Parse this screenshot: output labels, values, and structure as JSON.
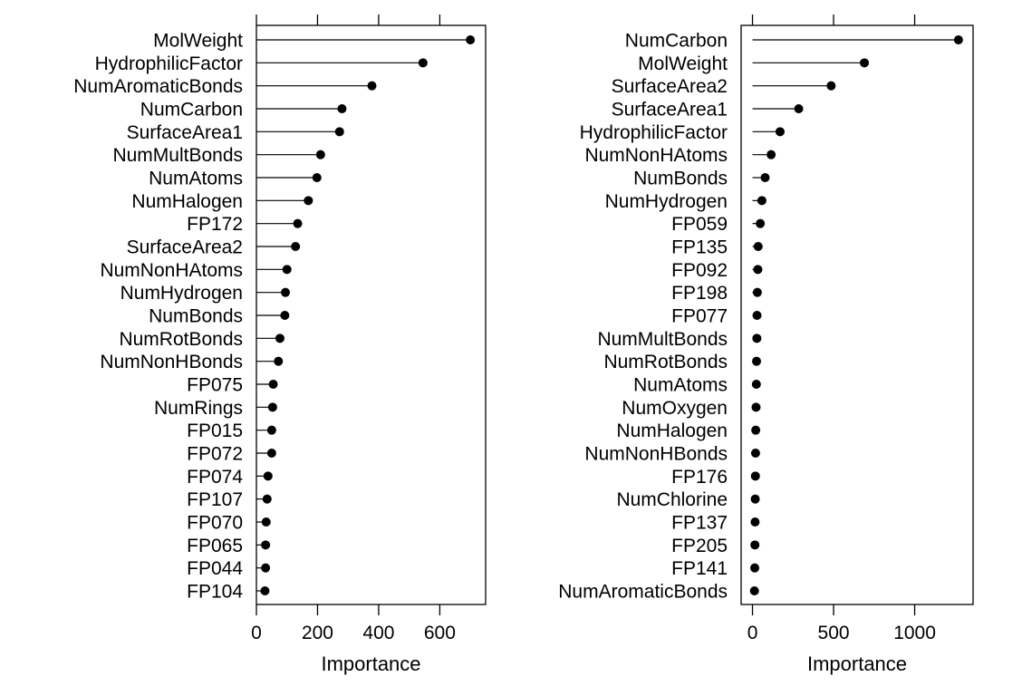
{
  "chart_data": [
    {
      "type": "dot",
      "xlabel": "Importance",
      "xlim": [
        0,
        750
      ],
      "xticks": [
        0,
        200,
        400,
        600
      ],
      "categories": [
        "MolWeight",
        "HydrophilicFactor",
        "NumAromaticBonds",
        "NumCarbon",
        "SurfaceArea1",
        "NumMultBonds",
        "NumAtoms",
        "NumHalogen",
        "FP172",
        "SurfaceArea2",
        "NumNonHAtoms",
        "NumHydrogen",
        "NumBonds",
        "NumRotBonds",
        "NumNonHBonds",
        "FP075",
        "NumRings",
        "FP015",
        "FP072",
        "FP074",
        "FP107",
        "FP070",
        "FP065",
        "FP044",
        "FP104"
      ],
      "values": [
        700,
        545,
        378,
        280,
        272,
        210,
        198,
        170,
        135,
        128,
        100,
        95,
        93,
        77,
        72,
        55,
        53,
        50,
        50,
        38,
        35,
        32,
        30,
        30,
        28
      ]
    },
    {
      "type": "dot",
      "xlabel": "Importance",
      "xlim": [
        -70,
        1360
      ],
      "xticks": [
        0,
        500,
        1000
      ],
      "categories": [
        "NumCarbon",
        "MolWeight",
        "SurfaceArea2",
        "SurfaceArea1",
        "HydrophilicFactor",
        "NumNonHAtoms",
        "NumBonds",
        "NumHydrogen",
        "FP059",
        "FP135",
        "FP092",
        "FP198",
        "FP077",
        "NumMultBonds",
        "NumRotBonds",
        "NumAtoms",
        "NumOxygen",
        "NumHalogen",
        "NumNonHBonds",
        "FP176",
        "NumChlorine",
        "FP137",
        "FP205",
        "FP141",
        "NumAromaticBonds"
      ],
      "values": [
        1270,
        690,
        485,
        285,
        170,
        115,
        78,
        58,
        48,
        35,
        33,
        30,
        28,
        27,
        25,
        24,
        22,
        20,
        19,
        18,
        17,
        16,
        15,
        14,
        12
      ]
    }
  ]
}
